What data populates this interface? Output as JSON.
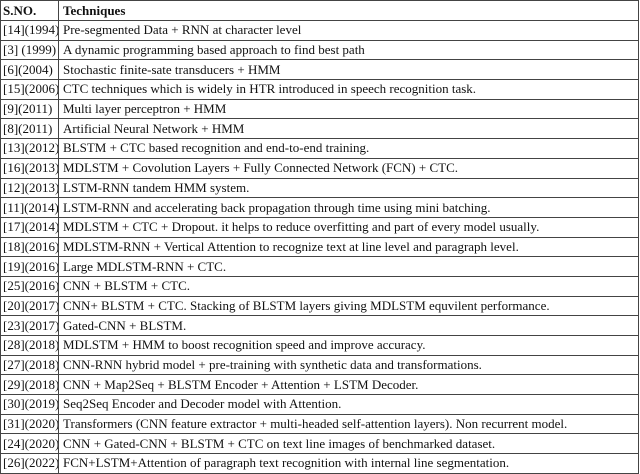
{
  "table": {
    "header": [
      "S.NO.",
      "Techniques"
    ],
    "rows": [
      [
        "[14](1994)",
        "Pre-segmented Data + RNN at character level"
      ],
      [
        "[3] (1999)",
        "A dynamic programming based approach to find best path"
      ],
      [
        "[6](2004)",
        "Stochastic finite-sate transducers + HMM"
      ],
      [
        "[15](2006)",
        "CTC techniques which is widely in HTR introduced in speech recognition task."
      ],
      [
        "[9](2011)",
        "Multi layer perceptron + HMM"
      ],
      [
        "[8](2011)",
        "Artificial Neural Network + HMM"
      ],
      [
        "[13](2012)",
        "BLSTM + CTC based recognition and end-to-end training."
      ],
      [
        "[16](2013)",
        "MDLSTM + Covolution Layers + Fully Connected Network (FCN) + CTC."
      ],
      [
        "[12](2013)",
        "LSTM-RNN tandem HMM system."
      ],
      [
        "[11](2014)",
        "LSTM-RNN and accelerating back propagation through time using mini batching."
      ],
      [
        "[17](2014)",
        "MDLSTM + CTC + Dropout. it helps to reduce overfitting and part of every model usually."
      ],
      [
        "[18](2016)",
        "MDLSTM-RNN + Vertical Attention to recognize text at line level and paragraph level."
      ],
      [
        "[19](2016)",
        "Large MDLSTM-RNN + CTC."
      ],
      [
        "[25](2016)",
        "CNN + BLSTM + CTC."
      ],
      [
        "[20](2017)",
        "CNN+ BLSTM + CTC. Stacking of BLSTM layers giving MDLSTM equvilent performance."
      ],
      [
        "[23](2017)",
        "Gated-CNN + BLSTM."
      ],
      [
        "[28](2018)",
        "MDLSTM + HMM to boost recognition speed and improve accuracy."
      ],
      [
        "[27](2018)",
        "CNN-RNN hybrid model + pre-training with synthetic data and transformations."
      ],
      [
        "[29](2018)",
        "CNN + Map2Seq + BLSTM Encoder + Attention + LSTM Decoder."
      ],
      [
        "[30](2019)",
        "Seq2Seq Encoder and Decoder model with Attention."
      ],
      [
        "[31](2020)",
        "Transformers (CNN feature extractor + multi-headed self-attention layers). Non recurrent model."
      ],
      [
        "[24](2020)",
        "CNN + Gated-CNN + BLSTM + CTC on text line images of benchmarked dataset."
      ],
      [
        "[26](2022)",
        "FCN+LSTM+Attention of paragraph text recognition with internal line segmentation."
      ]
    ]
  }
}
